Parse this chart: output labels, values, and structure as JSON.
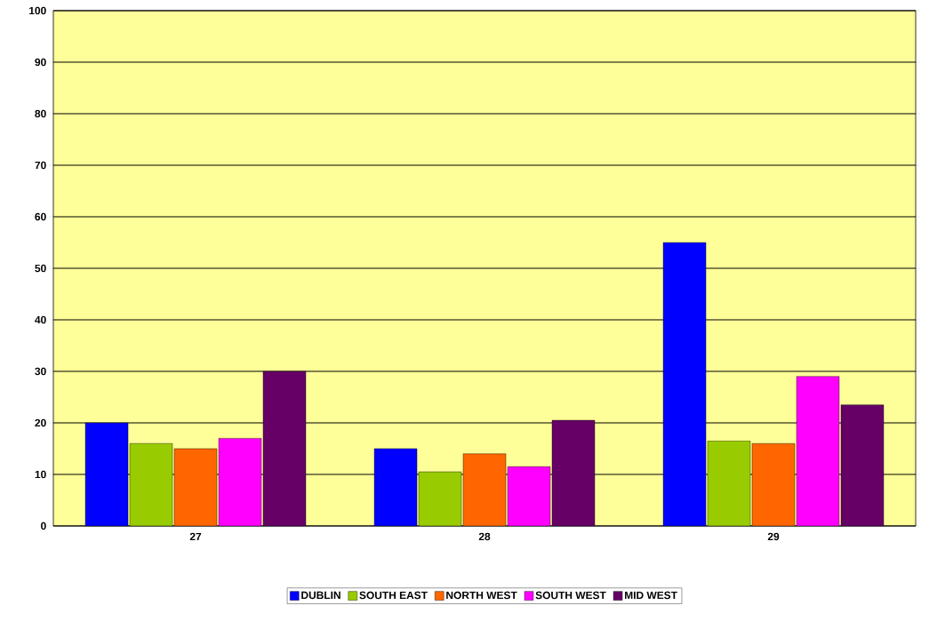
{
  "chart_data": {
    "type": "bar",
    "categories": [
      "27",
      "28",
      "29"
    ],
    "series": [
      {
        "name": "DUBLIN",
        "color": "#0000ff",
        "values": [
          20,
          15,
          55
        ]
      },
      {
        "name": "SOUTH EAST",
        "color": "#99cc00",
        "values": [
          16,
          10.5,
          16.5
        ]
      },
      {
        "name": "NORTH WEST",
        "color": "#ff6600",
        "values": [
          15,
          14,
          16
        ]
      },
      {
        "name": "SOUTH WEST",
        "color": "#ff00ff",
        "values": [
          17,
          11.5,
          29
        ]
      },
      {
        "name": "MID WEST",
        "color": "#660066",
        "values": [
          30,
          20.5,
          23.5
        ]
      }
    ],
    "ylim": [
      0,
      100
    ],
    "yticks": [
      0,
      10,
      20,
      30,
      40,
      50,
      60,
      70,
      80,
      90,
      100
    ],
    "grid": "y",
    "legend": "bottom"
  }
}
